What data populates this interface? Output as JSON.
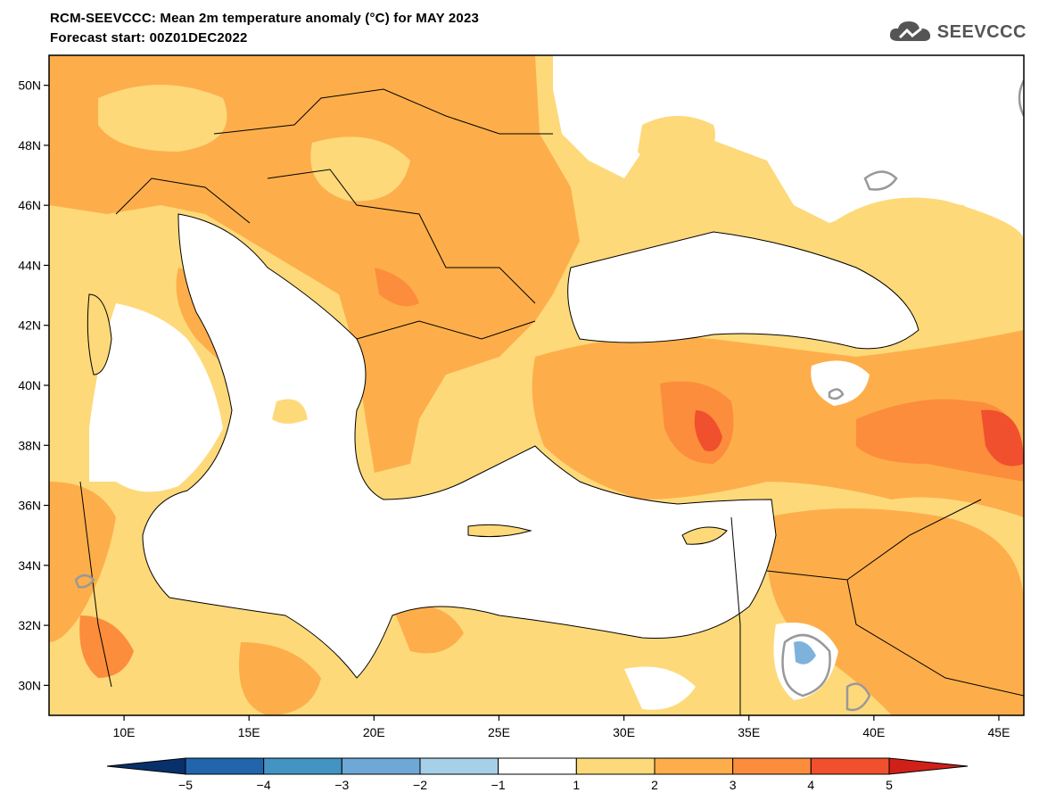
{
  "header": {
    "title": "RCM-SEEVCCC: Mean 2m temperature anomaly (°C) for MAY 2023",
    "subtitle": "Forecast start: 00Z01DEC2022",
    "logo_text": "SEEVCCC"
  },
  "map": {
    "lat_labels": [
      "50N",
      "48N",
      "46N",
      "44N",
      "42N",
      "40N",
      "38N",
      "36N",
      "34N",
      "32N",
      "30N"
    ],
    "lon_labels": [
      "10E",
      "15E",
      "20E",
      "25E",
      "30E",
      "35E",
      "40E",
      "45E"
    ],
    "lat_values": [
      50,
      48,
      46,
      44,
      42,
      40,
      38,
      36,
      34,
      32,
      30
    ],
    "lon_values": [
      10,
      15,
      20,
      25,
      30,
      35,
      40,
      45
    ],
    "lat_range": [
      29,
      51
    ],
    "lon_range": [
      7,
      46
    ]
  },
  "colorbar": {
    "labels": [
      "−5",
      "−4",
      "−3",
      "−2",
      "−1",
      "1",
      "2",
      "3",
      "4",
      "5"
    ],
    "colors": [
      "#08306b",
      "#2166ac",
      "#4393c3",
      "#6fa8d6",
      "#a6cfe8",
      "#ffffff",
      "#fdd97a",
      "#fdae4a",
      "#fc8d3c",
      "#f0502d",
      "#d0201a"
    ]
  },
  "colors": {
    "sea": "#ffffff",
    "class_1_2": "#fdd97a",
    "class_2_3": "#fdae4a",
    "class_3_4": "#fc8d3c",
    "class_4_5": "#f0502d",
    "class_neg": "#7fb2db",
    "contour": "#999999"
  }
}
